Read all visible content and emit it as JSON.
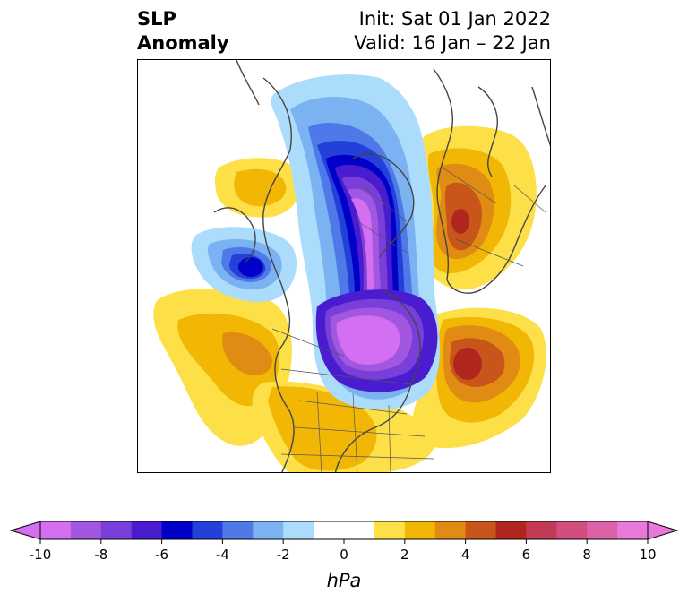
{
  "title": {
    "left_line1": "SLP",
    "left_line2": "Anomaly",
    "right_line1": "Init: Sat 01 Jan 2022",
    "right_line2": "Valid: 16 Jan – 22 Jan"
  },
  "colorbar": {
    "unit": "hPa",
    "ticks": [
      "-10",
      "-8",
      "-6",
      "-4",
      "-2",
      "0",
      "2",
      "4",
      "6",
      "8",
      "10"
    ],
    "levels": [
      -10,
      -9,
      -8,
      -7,
      -6,
      -5,
      -4,
      -3,
      -2,
      -1,
      1,
      2,
      3,
      4,
      5,
      6,
      7,
      8,
      9,
      10
    ],
    "colors": [
      "#d36ff0",
      "#a257e0",
      "#7a3fd8",
      "#4a1ccf",
      "#0000c8",
      "#2440db",
      "#4f78e8",
      "#7bb2f2",
      "#acdcfb",
      "#ffffff",
      "#ffffff",
      "#fde048",
      "#f2b705",
      "#e08c14",
      "#c8561a",
      "#b0261e",
      "#c23a55",
      "#d24e7e",
      "#dc62a8",
      "#e878d9"
    ],
    "min_arrow_color": "#d36ff0",
    "max_arrow_color": "#e878d9"
  },
  "map": {
    "projection": "north-polar-stereographic",
    "field": "SLP anomaly",
    "features": [
      {
        "name": "negative-center-arctic",
        "min_value": -10
      },
      {
        "name": "negative-center-greenland",
        "min_value": -10
      },
      {
        "name": "negative-center-kamchatka",
        "min_value": -7
      },
      {
        "name": "positive-center-north-atlantic",
        "max_value": 6
      },
      {
        "name": "positive-center-north-pacific",
        "max_value": 4
      },
      {
        "name": "positive-center-siberia",
        "max_value": 6
      },
      {
        "name": "positive-center-alaska-bering",
        "max_value": 2
      },
      {
        "name": "positive-center-united-states",
        "max_value": 2
      }
    ]
  }
}
